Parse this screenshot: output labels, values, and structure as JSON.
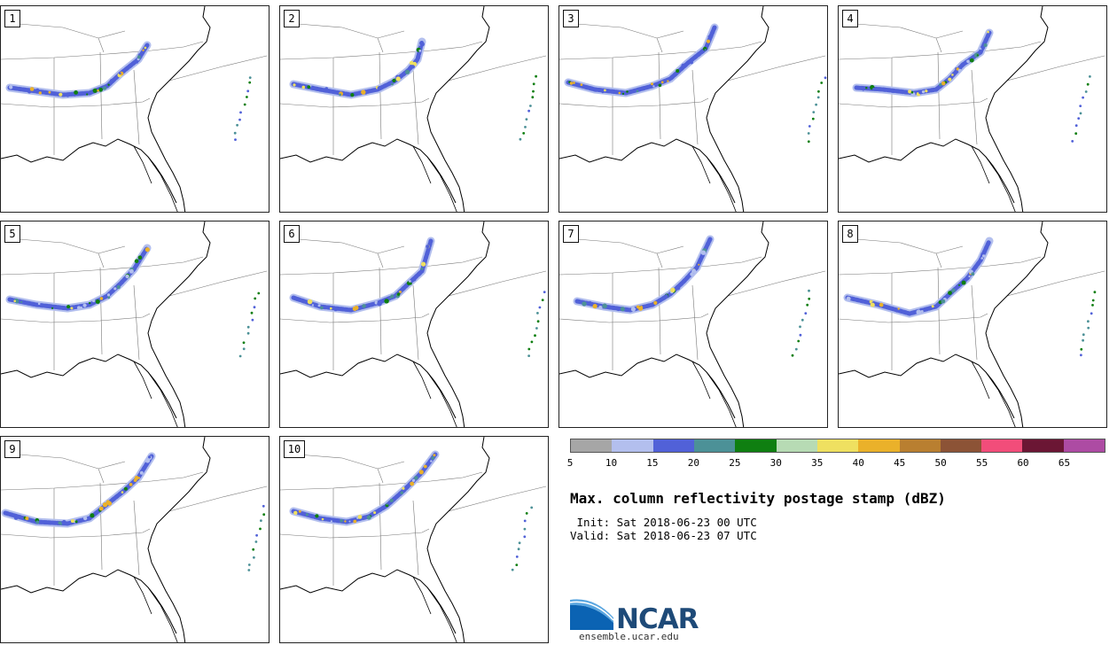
{
  "panels": [
    {
      "label": "1"
    },
    {
      "label": "2"
    },
    {
      "label": "3"
    },
    {
      "label": "4"
    },
    {
      "label": "5"
    },
    {
      "label": "6"
    },
    {
      "label": "7"
    },
    {
      "label": "8"
    },
    {
      "label": "9"
    },
    {
      "label": "10"
    }
  ],
  "colorbar": {
    "colors": [
      "#a6a6a6",
      "#b3bfee",
      "#5161d8",
      "#4c9197",
      "#0f7f11",
      "#b7dbb4",
      "#efe060",
      "#eab12a",
      "#b97f30",
      "#8c5336",
      "#f24d7a",
      "#6b1634",
      "#ad4ba3"
    ],
    "ticks": [
      "5",
      "10",
      "15",
      "20",
      "25",
      "30",
      "35",
      "40",
      "45",
      "50",
      "55",
      "60",
      "65"
    ]
  },
  "title": "Max. column reflectivity postage stamp (dBZ)",
  "init_line": " Init: Sat 2018-06-23 00 UTC",
  "valid_line": "Valid: Sat 2018-06-23 07 UTC",
  "logo": {
    "text": "NCAR",
    "url": "ensemble.ucar.edu"
  }
}
